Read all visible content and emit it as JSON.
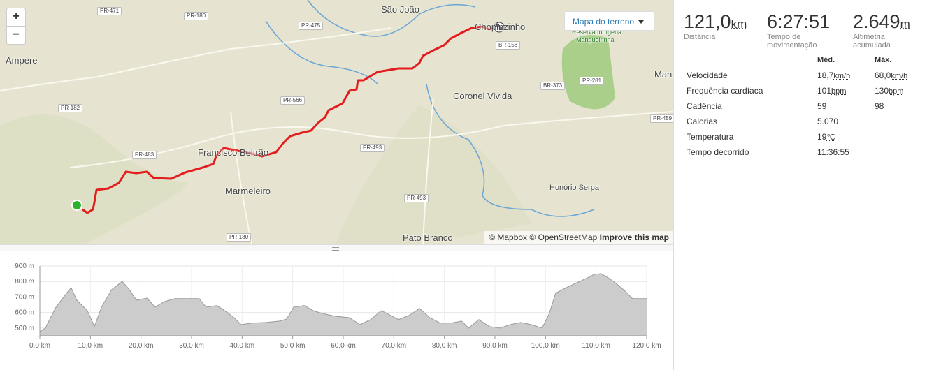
{
  "map": {
    "zoom_in": "+",
    "zoom_out": "−",
    "style_button": "Mapa do terreno",
    "places": [
      "São João",
      "Chopinzinho",
      "Ampère",
      "Coronel Vivida",
      "Francisco Beltrão",
      "Marmeleiro",
      "Honório Serpa",
      "Pato Branco",
      "Reserva Indígena",
      "Mangueirinha",
      "Mang"
    ],
    "roads": [
      "PR-471",
      "PR-180",
      "PR-475",
      "BR-158",
      "BR-373",
      "PR-281",
      "PR-566",
      "PR-182",
      "PR-493",
      "PR-483",
      "PR-493",
      "PR-180",
      "PR-459"
    ],
    "attribution": {
      "mapbox": "© Mapbox",
      "osm": "© OpenStreetMap",
      "improve": "Improve this map"
    }
  },
  "elevation": {
    "type": "area",
    "x": [
      0,
      1.1,
      3.2,
      5.3,
      6.2,
      7.3,
      9.4,
      10.8,
      12.2,
      14.2,
      16.3,
      17.7,
      19.1,
      21.2,
      22.8,
      24.6,
      26.7,
      29.4,
      31.5,
      32.9,
      35.0,
      37.1,
      38.4,
      39.8,
      41.9,
      44.7,
      47.4,
      48.8,
      50.2,
      52.3,
      54.3,
      56.4,
      58.5,
      61.2,
      63.3,
      65.4,
      67.5,
      68.9,
      70.9,
      73.0,
      75.1,
      77.1,
      79.2,
      81.3,
      83.4,
      84.8,
      86.8,
      88.9,
      91.0,
      93.0,
      95.1,
      97.2,
      99.3,
      100.7,
      102.0,
      104.1,
      106.2,
      108.3,
      109.6,
      111.0,
      112.4,
      113.8,
      115.9,
      117.2,
      120.0
    ],
    "values": [
      478,
      500,
      635,
      725,
      760,
      680,
      612,
      510,
      635,
      748,
      800,
      748,
      680,
      693,
      635,
      670,
      690,
      690,
      690,
      635,
      645,
      600,
      567,
      522,
      532,
      536,
      545,
      558,
      635,
      645,
      608,
      590,
      576,
      567,
      522,
      555,
      612,
      590,
      555,
      581,
      626,
      567,
      532,
      532,
      545,
      500,
      555,
      510,
      500,
      522,
      536,
      522,
      500,
      590,
      725,
      760,
      792,
      824,
      846,
      851,
      824,
      792,
      734,
      690,
      690
    ],
    "color": "#cccccc",
    "xlim": [
      0,
      120
    ],
    "ylim": [
      450,
      900
    ],
    "yticks": [
      {
        "value": 500,
        "label": "500 m"
      },
      {
        "value": 600,
        "label": "600 m"
      },
      {
        "value": 700,
        "label": "700 m"
      },
      {
        "value": 800,
        "label": "800 m"
      },
      {
        "value": 900,
        "label": "900 m"
      }
    ],
    "xticks": [
      {
        "value": 0,
        "label": "0,0 km"
      },
      {
        "value": 10,
        "label": "10,0 km"
      },
      {
        "value": 20,
        "label": "20,0 km"
      },
      {
        "value": 30,
        "label": "30,0 km"
      },
      {
        "value": 40,
        "label": "40,0 km"
      },
      {
        "value": 50,
        "label": "50,0 km"
      },
      {
        "value": 60,
        "label": "60,0 km"
      },
      {
        "value": 70,
        "label": "70,0 km"
      },
      {
        "value": 80,
        "label": "80,0 km"
      },
      {
        "value": 90,
        "label": "90,0 km"
      },
      {
        "value": 100,
        "label": "100,0 km"
      },
      {
        "value": 110,
        "label": "110,0 km"
      },
      {
        "value": 120,
        "label": "120,0 km"
      }
    ],
    "grid": true
  },
  "stats": {
    "summary": [
      {
        "value": "121,0",
        "unit": "km",
        "label": "Distância"
      },
      {
        "value": "6:27:51",
        "label": "Tempo de movimentação"
      },
      {
        "value": "2.649",
        "unit": "m",
        "label": "Altimetria acumulada"
      }
    ],
    "headers": [
      "Méd.",
      "Máx."
    ],
    "rows": [
      {
        "label": "Velocidade",
        "avg": "18,7",
        "avg_unit": "km/h",
        "max": "68,0",
        "max_unit": "km/h"
      },
      {
        "label": "Frequência cardíaca",
        "avg": "101",
        "avg_unit": "bpm",
        "max": "130",
        "max_unit": "bpm"
      },
      {
        "label": "Cadência",
        "avg": "59",
        "max": "98"
      },
      {
        "label": "Calorias",
        "avg": "5.070"
      },
      {
        "label": "Temperatura",
        "avg": "19",
        "avg_unit": "℃"
      },
      {
        "label": "Tempo decorrido",
        "avg": "11:36:55"
      }
    ]
  }
}
